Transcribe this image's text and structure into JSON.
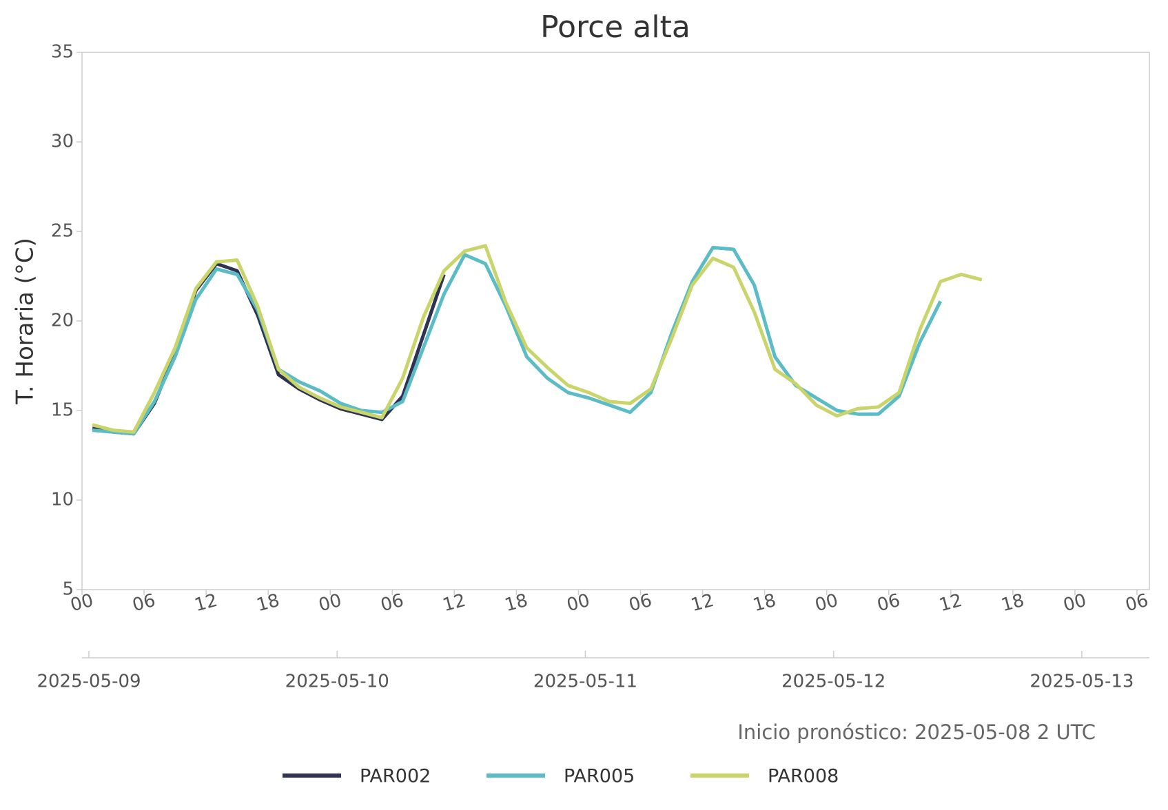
{
  "chart_data": {
    "type": "line",
    "title": "Porce alta",
    "ylabel": "T. Horaria (°C)",
    "annotation": "Inicio pronóstico: 2025-05-08 2 UTC",
    "x": [
      1,
      3,
      5,
      7,
      9,
      11,
      13,
      15,
      17,
      19,
      21,
      23,
      25,
      27,
      29,
      31,
      33,
      35,
      37,
      39,
      41,
      43,
      45,
      47,
      49,
      51,
      53,
      55,
      57,
      59,
      61,
      63,
      65,
      67,
      69,
      71,
      73,
      75,
      77,
      79,
      81,
      83,
      85,
      87
    ],
    "series": [
      {
        "name": "PAR002",
        "color": "#2e3253",
        "values": [
          14.0,
          13.8,
          13.7,
          15.4,
          18.2,
          21.7,
          23.2,
          22.8,
          20.3,
          17.0,
          16.2,
          15.6,
          15.1,
          14.8,
          14.5,
          15.8,
          19.2,
          22.6,
          null,
          null,
          null,
          null,
          null,
          null,
          null,
          null,
          null,
          null,
          null,
          null,
          null,
          null,
          null,
          null,
          null,
          null,
          null,
          null,
          null,
          null,
          null,
          null,
          null,
          null
        ]
      },
      {
        "name": "PAR005",
        "color": "#5bbcc6",
        "values": [
          13.9,
          13.8,
          13.7,
          15.5,
          18.0,
          21.2,
          22.9,
          22.6,
          20.6,
          17.3,
          16.6,
          16.1,
          15.4,
          15.0,
          14.9,
          15.5,
          18.5,
          21.5,
          23.7,
          23.2,
          20.8,
          18.0,
          16.8,
          16.0,
          15.7,
          15.3,
          14.9,
          16.0,
          19.3,
          22.2,
          24.1,
          24.0,
          22.0,
          18.0,
          16.4,
          15.7,
          15.0,
          14.8,
          14.8,
          15.8,
          18.8,
          21.1,
          null,
          null
        ]
      },
      {
        "name": "PAR008",
        "color": "#c9d46a",
        "values": [
          14.2,
          13.9,
          13.8,
          16.0,
          18.5,
          21.8,
          23.3,
          23.4,
          20.8,
          17.3,
          16.3,
          15.7,
          15.2,
          14.9,
          14.6,
          16.8,
          20.2,
          22.8,
          23.9,
          24.2,
          21.0,
          18.5,
          17.4,
          16.4,
          16.0,
          15.5,
          15.4,
          16.2,
          19.0,
          22.0,
          23.5,
          23.0,
          20.5,
          17.3,
          16.5,
          15.3,
          14.7,
          15.1,
          15.2,
          16.0,
          19.5,
          22.2,
          22.6,
          22.3
        ]
      }
    ],
    "xlim": [
      0,
      103.2
    ],
    "xticks": [
      {
        "value": 0,
        "label": "00"
      },
      {
        "value": 6,
        "label": "06"
      },
      {
        "value": 12,
        "label": "12"
      },
      {
        "value": 18,
        "label": "18"
      },
      {
        "value": 24,
        "label": "00"
      },
      {
        "value": 30,
        "label": "06"
      },
      {
        "value": 36,
        "label": "12"
      },
      {
        "value": 42,
        "label": "18"
      },
      {
        "value": 48,
        "label": "00"
      },
      {
        "value": 54,
        "label": "06"
      },
      {
        "value": 60,
        "label": "12"
      },
      {
        "value": 66,
        "label": "18"
      },
      {
        "value": 72,
        "label": "00"
      },
      {
        "value": 78,
        "label": "06"
      },
      {
        "value": 84,
        "label": "12"
      },
      {
        "value": 90,
        "label": "18"
      },
      {
        "value": 96,
        "label": "00"
      },
      {
        "value": 102,
        "label": "06"
      }
    ],
    "x2ticks": [
      {
        "value": 0,
        "label": "2025-05-09"
      },
      {
        "value": 24,
        "label": "2025-05-10"
      },
      {
        "value": 48,
        "label": "2025-05-11"
      },
      {
        "value": 72,
        "label": "2025-05-12"
      },
      {
        "value": 96,
        "label": "2025-05-13"
      }
    ],
    "ylim": [
      5,
      35
    ],
    "yticks": [
      5,
      10,
      15,
      20,
      25,
      30,
      35
    ],
    "grid": false
  }
}
